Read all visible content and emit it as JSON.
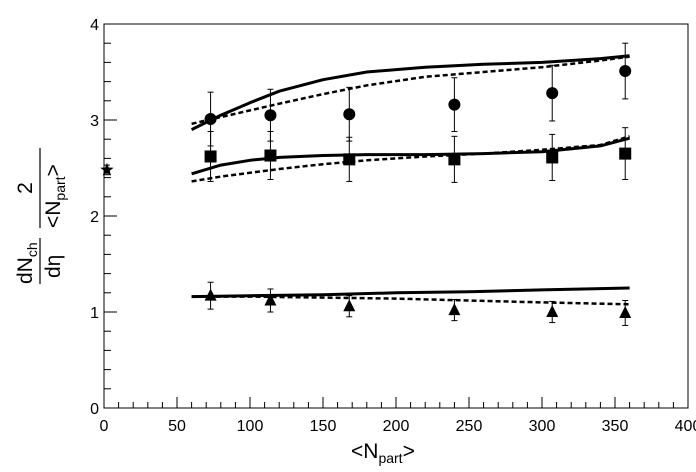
{
  "chart_data": {
    "type": "scatter",
    "title": "",
    "xlabel": "<N",
    "xlabel_sub": "part",
    "xlabel_suffix": ">",
    "ylabel": {
      "numerator": "dN",
      "numerator_sub": "ch",
      "denominator": "dη",
      "factor_numerator": "2",
      "factor_denominator": "<N",
      "factor_denominator_sub": "part",
      "factor_denominator_suffix": ">"
    },
    "xlim": [
      0,
      400
    ],
    "ylim": [
      0,
      4
    ],
    "x_ticks": [
      0,
      50,
      100,
      150,
      200,
      250,
      300,
      350,
      400
    ],
    "x_tick_labels": [
      "0",
      "50",
      "100",
      "150",
      "200",
      "250",
      "300",
      "350",
      "400"
    ],
    "y_ticks": [
      0,
      1,
      2,
      3,
      4
    ],
    "y_tick_labels": [
      "0",
      "1",
      "2",
      "3",
      "4"
    ],
    "grid": false,
    "legend": "none",
    "series": [
      {
        "marker": "circle",
        "points": [
          {
            "x": 73,
            "y": 3.01,
            "err": 0.28
          },
          {
            "x": 114,
            "y": 3.05,
            "err": 0.27
          },
          {
            "x": 168,
            "y": 3.06,
            "err": 0.28
          },
          {
            "x": 240,
            "y": 3.16,
            "err": 0.28
          },
          {
            "x": 307,
            "y": 3.28,
            "err": 0.29
          },
          {
            "x": 357,
            "y": 3.51,
            "err": 0.29
          }
        ]
      },
      {
        "marker": "square",
        "points": [
          {
            "x": 73,
            "y": 2.62,
            "err": 0.26
          },
          {
            "x": 114,
            "y": 2.63,
            "err": 0.25
          },
          {
            "x": 168,
            "y": 2.59,
            "err": 0.23
          },
          {
            "x": 240,
            "y": 2.59,
            "err": 0.24
          },
          {
            "x": 307,
            "y": 2.61,
            "err": 0.24
          },
          {
            "x": 357,
            "y": 2.65,
            "err": 0.27
          }
        ]
      },
      {
        "marker": "triangle",
        "points": [
          {
            "x": 73,
            "y": 1.17,
            "err": 0.14
          },
          {
            "x": 114,
            "y": 1.12,
            "err": 0.12
          },
          {
            "x": 168,
            "y": 1.06,
            "err": 0.11
          },
          {
            "x": 240,
            "y": 1.02,
            "err": 0.11
          },
          {
            "x": 307,
            "y": 1.0,
            "err": 0.11
          },
          {
            "x": 357,
            "y": 0.99,
            "err": 0.13
          }
        ]
      },
      {
        "marker": "star",
        "points": [
          {
            "x": 2,
            "y": 2.48,
            "err": 0.05
          }
        ]
      }
    ],
    "curves": [
      {
        "style": "solid",
        "x": [
          60,
          80,
          100,
          120,
          150,
          180,
          220,
          260,
          300,
          340,
          360
        ],
        "y": [
          2.9,
          3.05,
          3.18,
          3.3,
          3.42,
          3.5,
          3.55,
          3.58,
          3.6,
          3.64,
          3.67
        ]
      },
      {
        "style": "dashed",
        "x": [
          60,
          80,
          100,
          120,
          150,
          180,
          220,
          260,
          300,
          340,
          360
        ],
        "y": [
          2.96,
          3.03,
          3.1,
          3.17,
          3.27,
          3.36,
          3.45,
          3.5,
          3.55,
          3.62,
          3.66
        ]
      },
      {
        "style": "solid",
        "x": [
          60,
          80,
          100,
          120,
          150,
          180,
          220,
          260,
          300,
          340,
          360
        ],
        "y": [
          2.44,
          2.53,
          2.58,
          2.61,
          2.63,
          2.64,
          2.64,
          2.65,
          2.67,
          2.73,
          2.81
        ]
      },
      {
        "style": "dashed",
        "x": [
          60,
          80,
          100,
          120,
          150,
          180,
          220,
          260,
          300,
          340,
          360
        ],
        "y": [
          2.36,
          2.41,
          2.45,
          2.49,
          2.54,
          2.58,
          2.62,
          2.65,
          2.69,
          2.74,
          2.83
        ]
      },
      {
        "style": "solid",
        "x": [
          60,
          100,
          150,
          200,
          250,
          300,
          360
        ],
        "y": [
          1.16,
          1.17,
          1.18,
          1.2,
          1.21,
          1.23,
          1.25
        ]
      },
      {
        "style": "dashed",
        "x": [
          60,
          100,
          150,
          200,
          250,
          300,
          360
        ],
        "y": [
          1.16,
          1.16,
          1.15,
          1.14,
          1.12,
          1.1,
          1.08
        ]
      }
    ]
  }
}
